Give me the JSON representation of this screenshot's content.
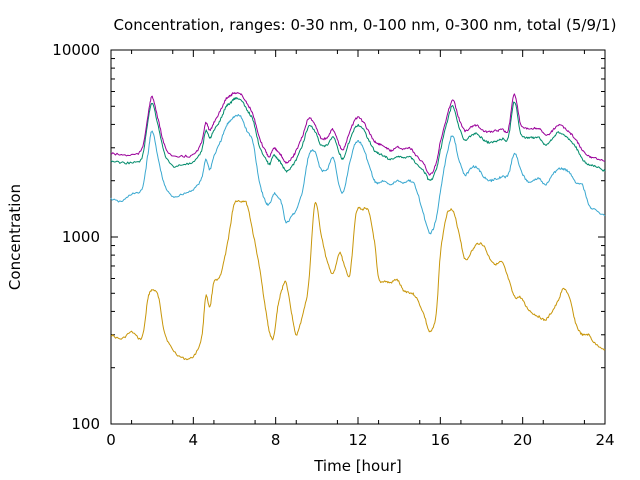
{
  "chart_data": {
    "type": "line",
    "title": "Concentration, ranges: 0-30 nm, 0-100 nm, 0-300 nm, total (5/9/1)",
    "xlabel": "Time [hour]",
    "ylabel": "Concentration",
    "xlim": [
      0,
      24
    ],
    "ylim": [
      100,
      10000
    ],
    "yscale": "log",
    "grid": false,
    "x_ticks": [
      0,
      4,
      8,
      12,
      16,
      20,
      24
    ],
    "x_tick_labels": [
      "0",
      "4",
      "8",
      "12",
      "16",
      "20",
      "24"
    ],
    "y_ticks": [
      100,
      1000,
      10000
    ],
    "y_tick_labels": [
      "100",
      "1000",
      "10000"
    ],
    "series": [
      {
        "color": "#c8960a",
        "x": [
          0,
          0.5,
          1,
          1.5,
          1.8,
          2,
          2.3,
          2.6,
          3,
          3.5,
          4,
          4.4,
          4.6,
          4.8,
          5,
          5.3,
          5.6,
          5.8,
          6,
          6.3,
          6.6,
          6.9,
          7.2,
          7.5,
          7.7,
          7.9,
          8.1,
          8.3,
          8.5,
          8.8,
          9,
          9.3,
          9.6,
          9.9,
          10.2,
          10.5,
          10.8,
          11.1,
          11.3,
          11.6,
          11.9,
          12.2,
          12.5,
          12.8,
          13,
          13.3,
          13.6,
          13.9,
          14.2,
          14.5,
          14.8,
          15.2,
          15.5,
          15.8,
          16,
          16.3,
          16.6,
          16.9,
          17.2,
          17.5,
          17.8,
          18.1,
          18.4,
          18.7,
          19,
          19.3,
          19.6,
          19.9,
          20.2,
          20.5,
          20.8,
          21.1,
          21.4,
          21.7,
          22,
          22.3,
          22.6,
          22.9,
          23.2,
          23.5,
          24
        ],
        "y": [
          300,
          285,
          310,
          290,
          470,
          520,
          480,
          310,
          250,
          225,
          230,
          290,
          480,
          420,
          570,
          620,
          850,
          1150,
          1520,
          1550,
          1500,
          1050,
          700,
          420,
          310,
          290,
          420,
          520,
          570,
          380,
          300,
          380,
          560,
          1500,
          1050,
          740,
          640,
          820,
          730,
          630,
          1330,
          1400,
          1380,
          940,
          600,
          580,
          570,
          590,
          520,
          505,
          480,
          385,
          310,
          390,
          800,
          1300,
          1380,
          1060,
          760,
          830,
          920,
          900,
          770,
          715,
          730,
          600,
          480,
          475,
          420,
          390,
          375,
          360,
          395,
          450,
          530,
          460,
          340,
          300,
          300,
          270,
          250
        ]
      },
      {
        "color": "#3aa8d0",
        "x": [
          0,
          0.5,
          1,
          1.5,
          1.8,
          2,
          2.3,
          2.6,
          3,
          3.5,
          4,
          4.4,
          4.6,
          4.8,
          5,
          5.3,
          5.6,
          5.8,
          6,
          6.3,
          6.6,
          6.9,
          7.2,
          7.5,
          7.7,
          7.9,
          8.1,
          8.3,
          8.5,
          8.8,
          9,
          9.3,
          9.6,
          9.9,
          10.2,
          10.5,
          10.8,
          11.1,
          11.3,
          11.6,
          11.9,
          12.2,
          12.5,
          12.8,
          13,
          13.3,
          13.6,
          13.9,
          14.2,
          14.5,
          14.8,
          15.2,
          15.5,
          15.8,
          16,
          16.3,
          16.6,
          16.9,
          17.2,
          17.5,
          17.8,
          18.1,
          18.4,
          18.7,
          19,
          19.3,
          19.6,
          19.9,
          20.2,
          20.5,
          20.8,
          21.1,
          21.4,
          21.7,
          22,
          22.3,
          22.6,
          22.9,
          23.2,
          23.5,
          24
        ],
        "y": [
          1600,
          1550,
          1700,
          1800,
          2800,
          3700,
          2600,
          1900,
          1650,
          1700,
          1800,
          2050,
          2600,
          2300,
          2700,
          3200,
          3900,
          4200,
          4400,
          4400,
          3700,
          3200,
          2000,
          1550,
          1500,
          1700,
          1650,
          1500,
          1200,
          1300,
          1400,
          1750,
          2700,
          2850,
          2300,
          2300,
          2650,
          1850,
          1750,
          2500,
          3200,
          3100,
          2500,
          2000,
          1950,
          2000,
          1900,
          2000,
          1950,
          2000,
          1850,
          1300,
          1050,
          1250,
          1750,
          2700,
          3500,
          2600,
          2150,
          2350,
          2350,
          2100,
          2000,
          2050,
          2100,
          2150,
          2800,
          2300,
          2000,
          2000,
          2050,
          1900,
          2100,
          2300,
          2300,
          2200,
          1950,
          1900,
          1500,
          1400,
          1300
        ]
      },
      {
        "color": "#008a6a",
        "x": [
          0,
          0.5,
          1,
          1.5,
          1.8,
          2,
          2.3,
          2.6,
          3,
          3.5,
          4,
          4.4,
          4.6,
          4.8,
          5,
          5.3,
          5.6,
          5.8,
          6,
          6.3,
          6.6,
          6.9,
          7.2,
          7.5,
          7.7,
          7.9,
          8.1,
          8.3,
          8.5,
          8.8,
          9,
          9.3,
          9.6,
          9.9,
          10.2,
          10.5,
          10.8,
          11.1,
          11.3,
          11.6,
          11.9,
          12.2,
          12.5,
          12.8,
          13,
          13.3,
          13.6,
          13.9,
          14.2,
          14.5,
          14.8,
          15.2,
          15.5,
          15.8,
          16,
          16.3,
          16.6,
          16.9,
          17.2,
          17.5,
          17.8,
          18.1,
          18.4,
          18.7,
          19,
          19.3,
          19.6,
          19.9,
          20.2,
          20.5,
          20.8,
          21.1,
          21.4,
          21.7,
          22,
          22.3,
          22.6,
          22.9,
          23.2,
          23.5,
          24
        ],
        "y": [
          2550,
          2500,
          2500,
          2650,
          4200,
          5200,
          3900,
          2800,
          2400,
          2450,
          2500,
          2900,
          3700,
          3400,
          3700,
          4200,
          5000,
          5200,
          5500,
          5400,
          4800,
          4200,
          3100,
          2650,
          2450,
          2750,
          2600,
          2450,
          2250,
          2400,
          2600,
          3100,
          3900,
          3700,
          3100,
          3100,
          3400,
          2800,
          2650,
          3300,
          3900,
          3850,
          3350,
          2900,
          2800,
          2700,
          2600,
          2700,
          2650,
          2700,
          2500,
          2250,
          2000,
          2300,
          2900,
          4000,
          5000,
          3900,
          3300,
          3500,
          3550,
          3300,
          3200,
          3250,
          3350,
          3400,
          5300,
          3600,
          3400,
          3400,
          3400,
          3100,
          3300,
          3600,
          3500,
          3300,
          3000,
          2600,
          2450,
          2400,
          2250
        ]
      },
      {
        "color": "#9a009a",
        "x": [
          0,
          0.5,
          1,
          1.5,
          1.8,
          2,
          2.3,
          2.6,
          3,
          3.5,
          4,
          4.4,
          4.6,
          4.8,
          5,
          5.3,
          5.6,
          5.8,
          6,
          6.3,
          6.6,
          6.9,
          7.2,
          7.5,
          7.7,
          7.9,
          8.1,
          8.3,
          8.5,
          8.8,
          9,
          9.3,
          9.6,
          9.9,
          10.2,
          10.5,
          10.8,
          11.1,
          11.3,
          11.6,
          11.9,
          12.2,
          12.5,
          12.8,
          13,
          13.3,
          13.6,
          13.9,
          14.2,
          14.5,
          14.8,
          15.2,
          15.5,
          15.8,
          16,
          16.3,
          16.6,
          16.9,
          17.2,
          17.5,
          17.8,
          18.1,
          18.4,
          18.7,
          19,
          19.3,
          19.6,
          19.9,
          20.2,
          20.5,
          20.8,
          21.1,
          21.4,
          21.7,
          22,
          22.3,
          22.6,
          22.9,
          23.2,
          23.5,
          24
        ],
        "y": [
          2800,
          2750,
          2750,
          2950,
          4500,
          5600,
          4200,
          3100,
          2700,
          2700,
          2750,
          3200,
          4100,
          3700,
          4100,
          4700,
          5500,
          5700,
          5900,
          5800,
          5200,
          4500,
          3400,
          2900,
          2700,
          3000,
          2850,
          2700,
          2500,
          2650,
          2900,
          3450,
          4300,
          4000,
          3400,
          3400,
          3750,
          3100,
          2950,
          3650,
          4300,
          4200,
          3700,
          3250,
          3150,
          3050,
          2900,
          3050,
          2950,
          3000,
          2750,
          2450,
          2150,
          2500,
          3200,
          4300,
          5400,
          4300,
          3700,
          3900,
          3950,
          3700,
          3650,
          3700,
          3750,
          3750,
          5800,
          4000,
          3800,
          3800,
          3800,
          3500,
          3650,
          3950,
          3850,
          3600,
          3300,
          2900,
          2700,
          2650,
          2550
        ]
      }
    ]
  }
}
